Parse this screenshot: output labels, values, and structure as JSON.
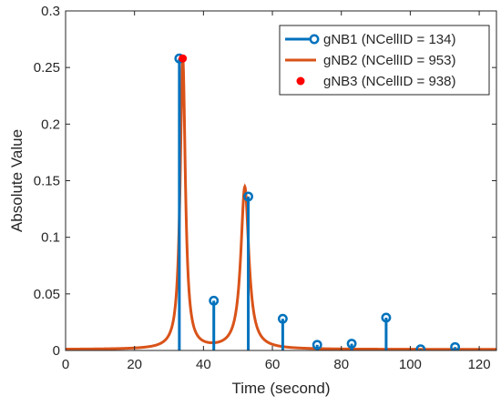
{
  "chart_data": {
    "type": "line",
    "title": "",
    "xlabel": "Time (second)",
    "ylabel": "Absolute Value",
    "xlim": [
      0,
      125
    ],
    "ylim": [
      0,
      0.3
    ],
    "xticks": [
      0,
      20,
      40,
      60,
      80,
      100,
      120
    ],
    "yticks": [
      0,
      0.05,
      0.1,
      0.15,
      0.2,
      0.25,
      0.3
    ],
    "xtick_labels": [
      "0",
      "20",
      "40",
      "60",
      "80",
      "100",
      "120"
    ],
    "ytick_labels": [
      "0",
      "0.05",
      "0.1",
      "0.15",
      "0.2",
      "0.25",
      "0.3"
    ],
    "grid": false,
    "legend_position": "top-right",
    "series": [
      {
        "name": "gNB1 (NCellID = 134)",
        "type": "stem",
        "color": "#0072BD",
        "x": [
          33,
          43,
          53,
          63,
          73,
          83,
          93,
          103,
          113
        ],
        "y": [
          0.258,
          0.044,
          0.136,
          0.028,
          0.005,
          0.006,
          0.029,
          0.001,
          0.003
        ]
      },
      {
        "name": "gNB2 (NCellID = 953)",
        "type": "line",
        "color": "#D95319",
        "peaks": [
          {
            "x": 34,
            "y": 0.258
          },
          {
            "x": 52,
            "y": 0.144
          }
        ]
      },
      {
        "name": "gNB3 (NCellID = 938)",
        "type": "scatter",
        "color": "#FF0000",
        "x": [
          34
        ],
        "y": [
          0.258
        ]
      }
    ]
  }
}
